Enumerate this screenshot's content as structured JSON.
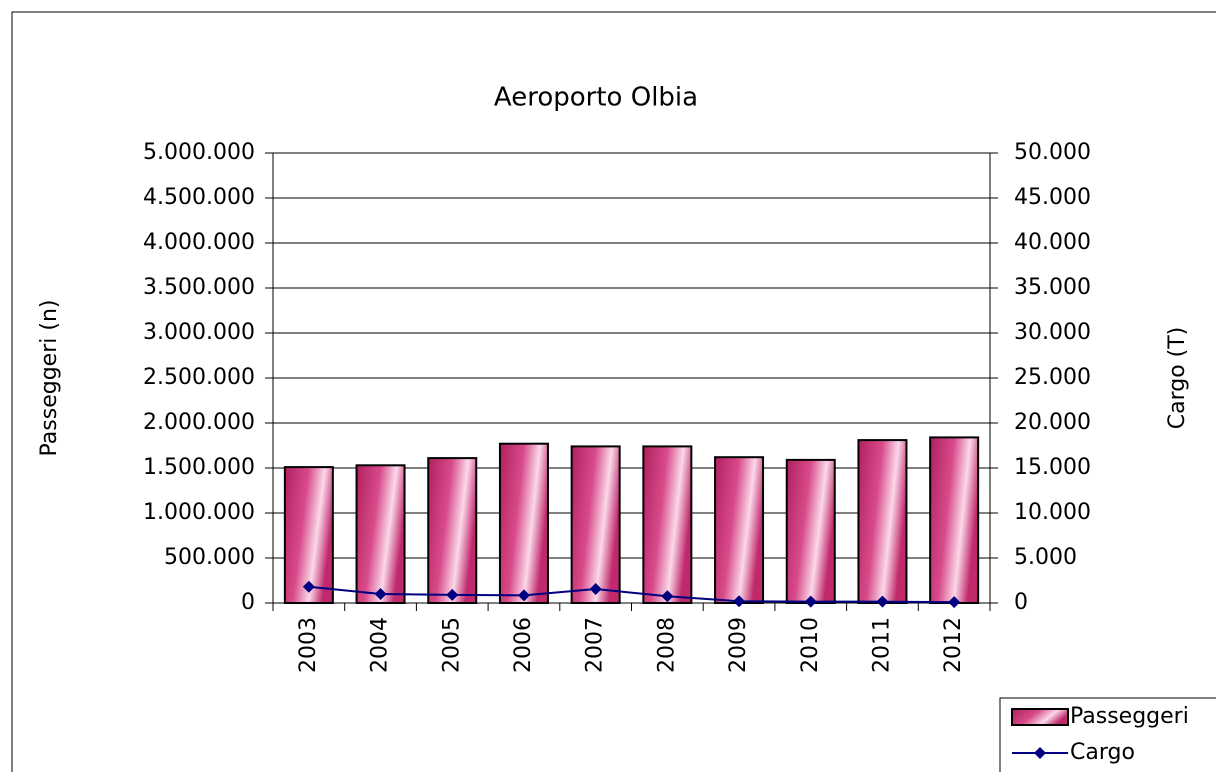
{
  "chart_data": {
    "type": "bar_line",
    "title": "Aeroporto Olbia",
    "y_label": "Passeggeri (n)",
    "y2_label": "Cargo (T)",
    "categories": [
      "2003",
      "2004",
      "2005",
      "2006",
      "2007",
      "2008",
      "2009",
      "2010",
      "2011",
      "2012"
    ],
    "series": [
      {
        "name": "Passeggeri",
        "type": "bar",
        "color": "#cc3377",
        "values": [
          1510000,
          1530000,
          1610000,
          1770000,
          1740000,
          1740000,
          1620000,
          1590000,
          1810000,
          1840000
        ]
      },
      {
        "name": "Cargo",
        "type": "line",
        "axis": "y2",
        "color": "#000080",
        "values": [
          1800,
          1000,
          900,
          850,
          1550,
          750,
          200,
          150,
          150,
          100
        ]
      }
    ],
    "ylim": [
      0,
      5000000
    ],
    "yticks": [
      0,
      {
        "value": 500000,
        "label": "500.000"
      },
      {
        "value": 1000000,
        "label": "1.000.000"
      },
      {
        "value": 1500000,
        "label": "1.500.000"
      },
      {
        "value": 2000000,
        "label": "2.000.000"
      },
      {
        "value": 2500000,
        "label": "2.500.000"
      },
      {
        "value": 3000000,
        "label": "3.000.000"
      },
      {
        "value": 3500000,
        "label": "3.500.000"
      },
      {
        "value": 4000000,
        "label": "4.000.000"
      },
      {
        "value": 4500000,
        "label": "4.500.000"
      },
      {
        "value": 5000000,
        "label": "5.000.000"
      }
    ],
    "y2lim": [
      0,
      50000
    ],
    "y2ticks": [
      0,
      {
        "value": 5000,
        "label": "5.000"
      },
      {
        "value": 10000,
        "label": "10.000"
      },
      {
        "value": 15000,
        "label": "15.000"
      },
      {
        "value": 20000,
        "label": "20.000"
      },
      {
        "value": 25000,
        "label": "25.000"
      },
      {
        "value": 30000,
        "label": "30.000"
      },
      {
        "value": 35000,
        "label": "35.000"
      },
      {
        "value": 40000,
        "label": "40.000"
      },
      {
        "value": 45000,
        "label": "45.000"
      },
      {
        "value": 50000,
        "label": "50.000"
      }
    ],
    "grid": true,
    "legend": "bottom-right"
  }
}
